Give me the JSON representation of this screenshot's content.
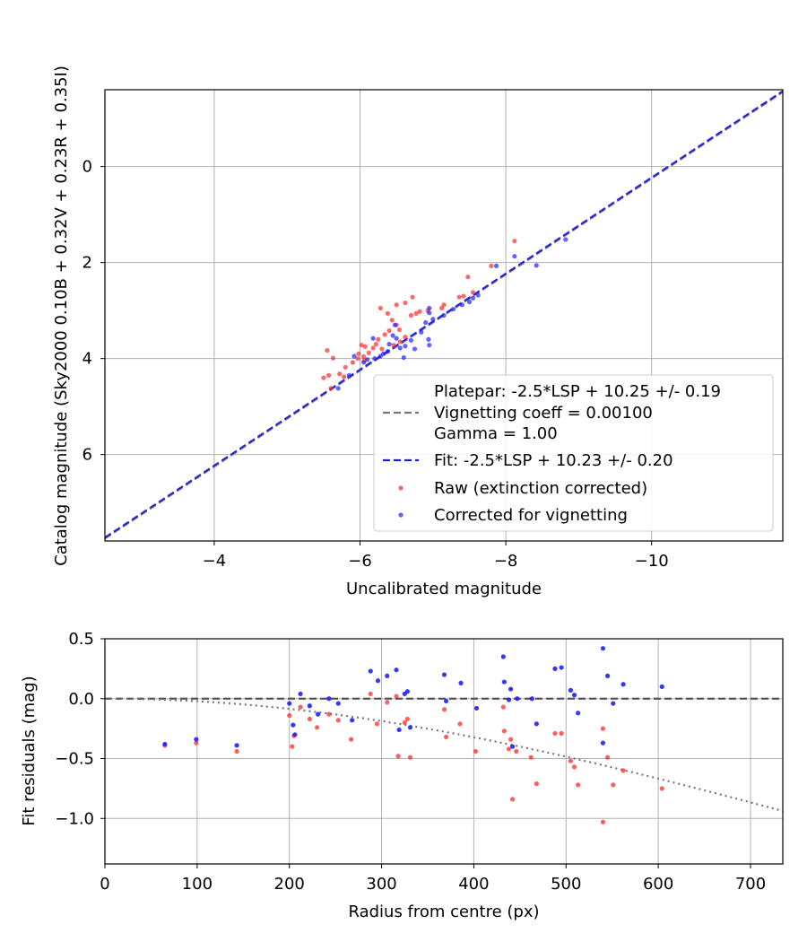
{
  "chart_data": [
    {
      "type": "scatter",
      "xlabel": "Uncalibrated magnitude",
      "ylabel": "Catalog magnitude (Sky2000 0.10B + 0.32V + 0.23R + 0.35I)",
      "xlim": [
        -2.5,
        -11.8
      ],
      "ylim": [
        7.8,
        -1.6
      ],
      "x_inverted": true,
      "y_inverted": true,
      "xticks": [
        -4,
        -6,
        -8,
        -10
      ],
      "xtick_labels": [
        "−4",
        "−6",
        "−8",
        "−10"
      ],
      "yticks": [
        0,
        2,
        4,
        6
      ],
      "ytick_labels": [
        "0",
        "2",
        "4",
        "6"
      ],
      "grid": true,
      "legend_position": "bottom-right",
      "legend": [
        {
          "label": "Platepar: -2.5*LSP + 10.25 +/- 0.19",
          "style": "none"
        },
        {
          "label": "Vignetting coeff = 0.00100",
          "style": "gray-dashed"
        },
        {
          "label": "Gamma = 1.00",
          "style": "none"
        },
        {
          "label": "Fit: -2.5*LSP + 10.23 +/- 0.20",
          "style": "blue-dashed"
        },
        {
          "label": "Raw (extinction corrected)",
          "style": "red-dot"
        },
        {
          "label": "Corrected for vignetting",
          "style": "blue-dot"
        }
      ],
      "lines": [
        {
          "name": "Platepar",
          "slope": -2.5,
          "intercept": 10.25,
          "color": "#777777"
        },
        {
          "name": "Fit",
          "slope": -2.5,
          "intercept": 10.23,
          "color": "#2020d0"
        }
      ],
      "series": [
        {
          "name": "Raw (extinction corrected)",
          "color": "#ff2a2a",
          "points": [
            [
              -8.12,
              1.55
            ],
            [
              -7.8,
              2.07
            ],
            [
              -7.48,
              2.3
            ],
            [
              -7.55,
              2.62
            ],
            [
              -7.42,
              2.7
            ],
            [
              -7.36,
              2.72
            ],
            [
              -7.15,
              2.88
            ],
            [
              -7.12,
              2.95
            ],
            [
              -6.93,
              3.0
            ],
            [
              -6.82,
              3.02
            ],
            [
              -6.77,
              3.06
            ],
            [
              -6.7,
              3.1
            ],
            [
              -6.72,
              2.72
            ],
            [
              -6.62,
              2.84
            ],
            [
              -6.5,
              2.88
            ],
            [
              -6.28,
              2.95
            ],
            [
              -6.38,
              3.06
            ],
            [
              -6.44,
              3.2
            ],
            [
              -6.5,
              3.3
            ],
            [
              -6.54,
              3.4
            ],
            [
              -6.4,
              3.42
            ],
            [
              -6.34,
              3.5
            ],
            [
              -6.25,
              3.6
            ],
            [
              -6.22,
              3.7
            ],
            [
              -6.3,
              3.8
            ],
            [
              -6.07,
              3.75
            ],
            [
              -6.02,
              3.72
            ],
            [
              -6.18,
              3.78
            ],
            [
              -6.12,
              3.88
            ],
            [
              -6.05,
              3.96
            ],
            [
              -5.98,
              3.9
            ],
            [
              -5.97,
              4.0
            ],
            [
              -5.9,
              4.08
            ],
            [
              -5.8,
              4.18
            ],
            [
              -5.78,
              4.38
            ],
            [
              -5.72,
              4.32
            ],
            [
              -5.63,
              3.99
            ],
            [
              -5.55,
              3.83
            ],
            [
              -5.5,
              4.4
            ],
            [
              -5.57,
              4.35
            ],
            [
              -5.6,
              4.62
            ],
            [
              -6.06,
              4.04
            ],
            [
              -6.62,
              3.55
            ],
            [
              -6.55,
              3.65
            ],
            [
              -6.46,
              3.72
            ]
          ]
        },
        {
          "name": "Corrected for vignetting",
          "color": "#2020ff",
          "points": [
            [
              -8.82,
              1.52
            ],
            [
              -8.42,
              2.06
            ],
            [
              -8.12,
              1.87
            ],
            [
              -7.87,
              2.07
            ],
            [
              -7.62,
              2.68
            ],
            [
              -7.55,
              2.74
            ],
            [
              -7.5,
              2.82
            ],
            [
              -7.4,
              2.88
            ],
            [
              -7.28,
              2.97
            ],
            [
              -7.15,
              3.1
            ],
            [
              -7.0,
              3.18
            ],
            [
              -6.95,
              2.95
            ],
            [
              -6.95,
              3.05
            ],
            [
              -6.9,
              3.25
            ],
            [
              -6.84,
              3.45
            ],
            [
              -6.94,
              3.6
            ],
            [
              -6.95,
              3.72
            ],
            [
              -6.7,
              3.62
            ],
            [
              -6.62,
              3.74
            ],
            [
              -6.55,
              3.78
            ],
            [
              -6.5,
              3.58
            ],
            [
              -6.45,
              3.52
            ],
            [
              -6.48,
              3.3
            ],
            [
              -6.38,
              3.85
            ],
            [
              -6.32,
              3.9
            ],
            [
              -6.28,
              3.95
            ],
            [
              -6.2,
              4.0
            ],
            [
              -6.1,
              4.02
            ],
            [
              -6.05,
              4.08
            ],
            [
              -5.92,
              3.95
            ],
            [
              -5.85,
              4.35
            ],
            [
              -5.7,
              4.62
            ],
            [
              -6.6,
              3.98
            ],
            [
              -6.75,
              3.8
            ],
            [
              -6.4,
              3.7
            ],
            [
              -6.18,
              3.58
            ]
          ]
        }
      ]
    },
    {
      "type": "scatter",
      "xlabel": "Radius from centre (px)",
      "ylabel": "Fit residuals (mag)",
      "xlim": [
        0,
        735
      ],
      "ylim": [
        -1.38,
        0.5
      ],
      "xticks": [
        0,
        100,
        200,
        300,
        400,
        500,
        600,
        700
      ],
      "xtick_labels": [
        "0",
        "100",
        "200",
        "300",
        "400",
        "500",
        "600",
        "700"
      ],
      "yticks": [
        0.5,
        0.0,
        -0.5,
        -1.0
      ],
      "ytick_labels": [
        "0.5",
        "0.0",
        "−0.5",
        "−1.0"
      ],
      "grid": true,
      "reference_lines": [
        {
          "name": "zero",
          "value": 0.0,
          "style": "dashed",
          "color": "#555555"
        },
        {
          "name": "vignetting-curve",
          "style": "dotted",
          "color": "#777777",
          "coeff": 0.001
        }
      ],
      "series": [
        {
          "name": "Raw (extinction corrected)",
          "color": "#ff2a2a",
          "points": [
            [
              65,
              -0.39
            ],
            [
              99,
              -0.37
            ],
            [
              143,
              -0.44
            ],
            [
              200,
              -0.14
            ],
            [
              203,
              -0.4
            ],
            [
              205,
              -0.31
            ],
            [
              212,
              -0.07
            ],
            [
              222,
              -0.17
            ],
            [
              230,
              -0.24
            ],
            [
              243,
              -0.13
            ],
            [
              253,
              -0.18
            ],
            [
              267,
              -0.34
            ],
            [
              288,
              0.04
            ],
            [
              295,
              -0.21
            ],
            [
              306,
              -0.03
            ],
            [
              316,
              0.02
            ],
            [
              318,
              -0.48
            ],
            [
              325,
              -0.2
            ],
            [
              328,
              -0.17
            ],
            [
              331,
              -0.49
            ],
            [
              368,
              -0.09
            ],
            [
              370,
              -0.32
            ],
            [
              385,
              -0.21
            ],
            [
              402,
              -0.44
            ],
            [
              432,
              -0.07
            ],
            [
              433,
              -0.27
            ],
            [
              438,
              -0.42
            ],
            [
              440,
              -0.34
            ],
            [
              442,
              -0.84
            ],
            [
              446,
              -0.44
            ],
            [
              462,
              -0.49
            ],
            [
              468,
              -0.71
            ],
            [
              488,
              -0.29
            ],
            [
              495,
              -0.29
            ],
            [
              505,
              -0.52
            ],
            [
              509,
              -0.57
            ],
            [
              513,
              -0.72
            ],
            [
              540,
              -0.25
            ],
            [
              540,
              -1.03
            ],
            [
              545,
              -0.49
            ],
            [
              551,
              -0.72
            ],
            [
              562,
              -0.6
            ],
            [
              604,
              -0.75
            ]
          ]
        },
        {
          "name": "Corrected for vignetting",
          "color": "#2020ff",
          "points": [
            [
              65,
              -0.38
            ],
            [
              99,
              -0.34
            ],
            [
              143,
              -0.39
            ],
            [
              200,
              -0.04
            ],
            [
              204,
              -0.22
            ],
            [
              206,
              -0.3
            ],
            [
              212,
              0.04
            ],
            [
              222,
              -0.06
            ],
            [
              231,
              -0.13
            ],
            [
              243,
              0.0
            ],
            [
              253,
              -0.04
            ],
            [
              268,
              -0.18
            ],
            [
              288,
              0.23
            ],
            [
              296,
              0.15
            ],
            [
              306,
              0.19
            ],
            [
              316,
              0.24
            ],
            [
              319,
              -0.26
            ],
            [
              325,
              0.04
            ],
            [
              328,
              0.06
            ],
            [
              331,
              -0.24
            ],
            [
              368,
              0.2
            ],
            [
              370,
              -0.02
            ],
            [
              386,
              0.13
            ],
            [
              403,
              -0.08
            ],
            [
              432,
              0.35
            ],
            [
              433,
              0.14
            ],
            [
              438,
              -0.01
            ],
            [
              440,
              0.08
            ],
            [
              442,
              -0.4
            ],
            [
              447,
              0.0
            ],
            [
              463,
              0.0
            ],
            [
              468,
              -0.21
            ],
            [
              488,
              0.25
            ],
            [
              495,
              0.26
            ],
            [
              505,
              0.07
            ],
            [
              509,
              0.03
            ],
            [
              513,
              -0.12
            ],
            [
              540,
              0.42
            ],
            [
              540,
              -0.37
            ],
            [
              545,
              0.19
            ],
            [
              551,
              -0.04
            ],
            [
              562,
              0.12
            ],
            [
              604,
              0.1
            ]
          ]
        }
      ]
    }
  ]
}
